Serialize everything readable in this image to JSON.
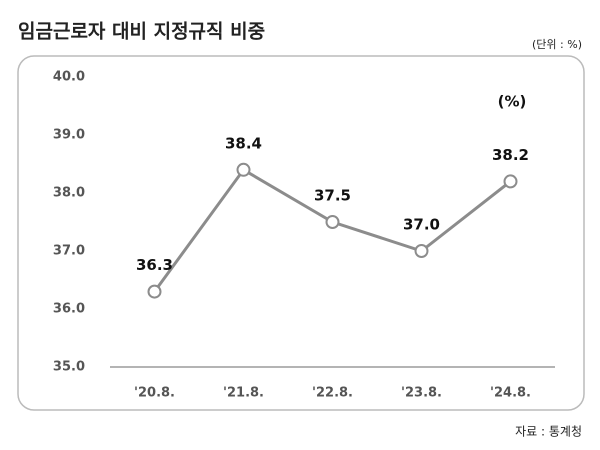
{
  "chart_data": {
    "type": "line",
    "title": "임금근로자 대비 지정규직 비중",
    "subtitle": "(단위 : %)",
    "annotation": "(%)",
    "source": "자료 : 통계청",
    "categories": [
      "'20.8.",
      "'21.8.",
      "'22.8.",
      "'23.8.",
      "'24.8."
    ],
    "values": [
      36.3,
      38.4,
      37.5,
      37.0,
      38.2
    ],
    "value_labels": [
      "36.3",
      "38.4",
      "37.5",
      "37.0",
      "38.2"
    ],
    "color": "#8c8c8c",
    "ylim": [
      35,
      40
    ],
    "yticks": [
      {
        "value": 35,
        "label": "35.0"
      },
      {
        "value": 36,
        "label": "36.0"
      },
      {
        "value": 37,
        "label": "37.0"
      },
      {
        "value": 38,
        "label": "38.0"
      },
      {
        "value": 39,
        "label": "39.0"
      },
      {
        "value": 40,
        "label": "40.0"
      }
    ],
    "grid": false
  }
}
